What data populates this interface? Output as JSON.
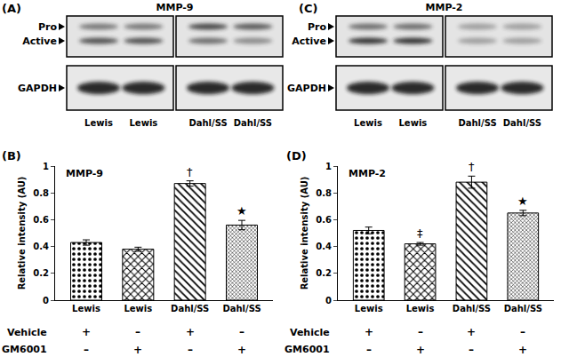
{
  "blots": [
    {
      "label": "(A)",
      "title": "MMP-9",
      "band_labels": [
        "Pro",
        "Active"
      ],
      "loading_control": "GAPDH",
      "groups": [
        [
          "Lewis",
          "Lewis"
        ],
        [
          "Dahl/SS",
          "Dahl/SS"
        ]
      ]
    },
    {
      "label": "(C)",
      "title": "MMP-2",
      "band_labels": [
        "Pro",
        "Active"
      ],
      "loading_control": "GAPDH",
      "groups": [
        [
          "Lewis",
          "Lewis"
        ],
        [
          "Dahl/SS",
          "Dahl/SS"
        ]
      ]
    }
  ],
  "chart_data": [
    {
      "type": "bar",
      "label": "(B)",
      "title": "MMP-9",
      "y_label": "Relative intensity (AU)",
      "categories": [
        "Lewis",
        "Lewis",
        "Dahl/SS",
        "Dahl/SS"
      ],
      "values": [
        0.43,
        0.38,
        0.87,
        0.56
      ],
      "errors": [
        0.02,
        0.015,
        0.02,
        0.035
      ],
      "significance": [
        null,
        null,
        "†",
        "★"
      ],
      "treatments": [
        {
          "name": "Vehicle",
          "marks": [
            "+",
            "–",
            "+",
            "–"
          ]
        },
        {
          "name": "GM6001",
          "marks": [
            "–",
            "+",
            "–",
            "+"
          ]
        }
      ],
      "ylim": [
        0,
        1
      ],
      "yticks": [
        0,
        0.2,
        0.4,
        0.6,
        0.8,
        1
      ],
      "grid": false,
      "color": "#ffffff"
    },
    {
      "type": "bar",
      "label": "(D)",
      "title": "MMP-2",
      "y_label": "Relative intensity (AU)",
      "categories": [
        "Lewis",
        "Lewis",
        "Dahl/SS",
        "Dahl/SS"
      ],
      "values": [
        0.52,
        0.42,
        0.88,
        0.65
      ],
      "errors": [
        0.025,
        0.01,
        0.045,
        0.02
      ],
      "significance": [
        null,
        "‡",
        "†",
        "★"
      ],
      "treatments": [
        {
          "name": "Vehicle",
          "marks": [
            "+",
            "–",
            "+",
            "–"
          ]
        },
        {
          "name": "GM6001",
          "marks": [
            "–",
            "+",
            "–",
            "+"
          ]
        }
      ],
      "ylim": [
        0,
        1
      ],
      "yticks": [
        0,
        0.2,
        0.4,
        0.6,
        0.8,
        1
      ],
      "grid": false,
      "color": "#ffffff"
    }
  ]
}
